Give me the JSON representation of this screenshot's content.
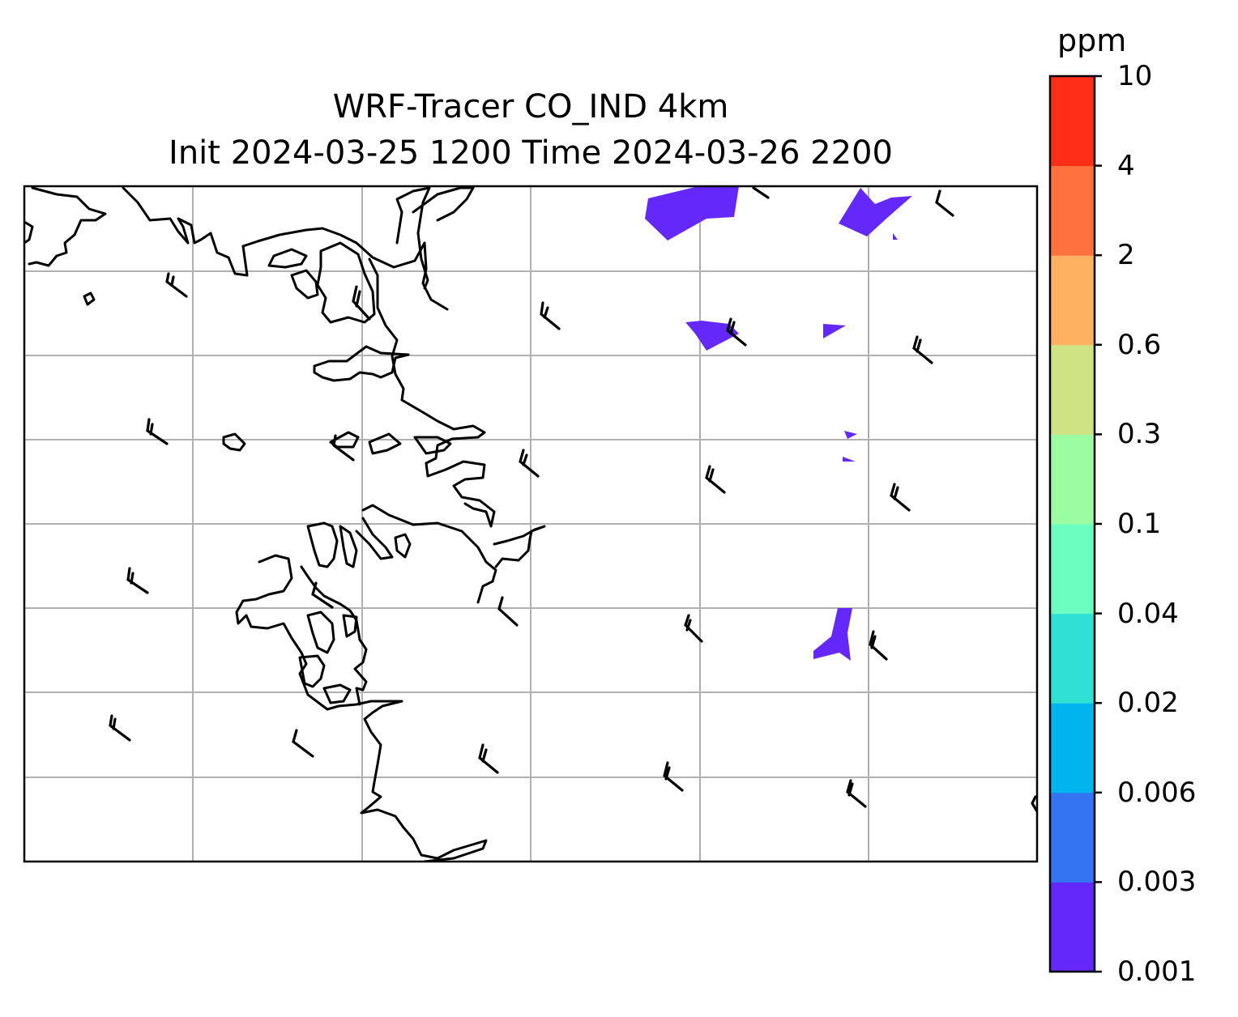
{
  "title_line1": "WRF-Tracer CO_IND 4km",
  "title_line2": "Init 2024-03-25 1200 Time 2024-03-26 2200",
  "colorbar": {
    "unit": "ppm",
    "ticks": [
      "0.001",
      "0.003",
      "0.006",
      "0.02",
      "0.04",
      "0.1",
      "0.3",
      "0.6",
      "2",
      "4",
      "10"
    ],
    "colors": [
      "#6428fa",
      "#3473f2",
      "#00b4ee",
      "#30e0d4",
      "#6cfdc0",
      "#9cfca2",
      "#d0e384",
      "#feb261",
      "#ff723f",
      "#ff2e18"
    ]
  },
  "map": {
    "gridlines": true,
    "wind_barbs": true,
    "tracer_fill_color": "#6428fa"
  }
}
